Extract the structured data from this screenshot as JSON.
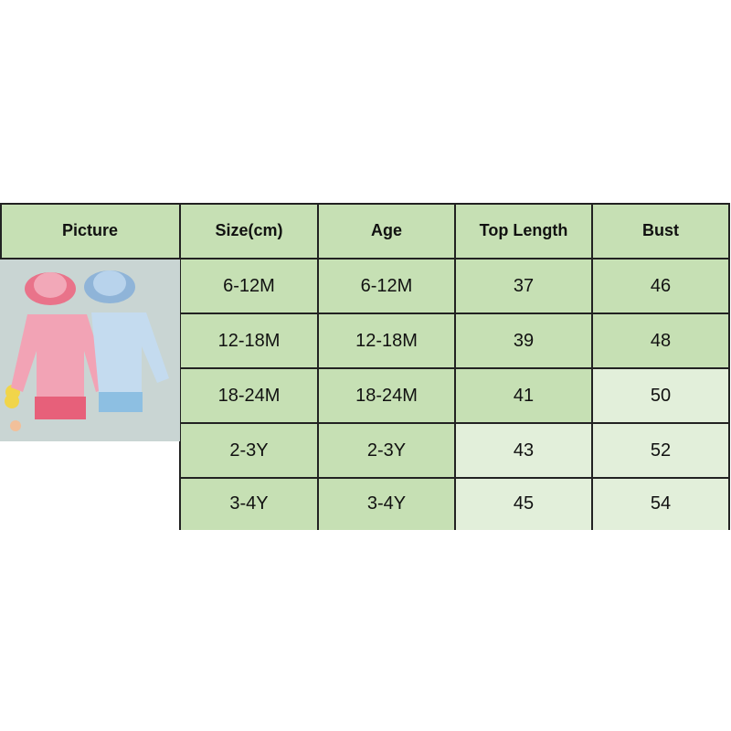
{
  "table": {
    "headers": [
      "Picture",
      "Size(cm)",
      "Age",
      "Top Length",
      "Bust"
    ],
    "rows": [
      {
        "size": "6-12M",
        "age": "6-12M",
        "top_length": "37",
        "bust": "46"
      },
      {
        "size": "12-18M",
        "age": "12-18M",
        "top_length": "39",
        "bust": "48"
      },
      {
        "size": "18-24M",
        "age": "18-24M",
        "top_length": "41",
        "bust": "50"
      },
      {
        "size": "2-3Y",
        "age": "2-3Y",
        "top_length": "43",
        "bust": "52"
      },
      {
        "size": "3-4Y",
        "age": "3-4Y",
        "top_length": "45",
        "bust": "54"
      }
    ]
  },
  "picture": {
    "description_icon": "product-photo-baby-swimsuits"
  },
  "colors": {
    "header_green": "#c6e0b4",
    "cell_green": "#c6e0b4",
    "cell_light": "#e2efda"
  }
}
